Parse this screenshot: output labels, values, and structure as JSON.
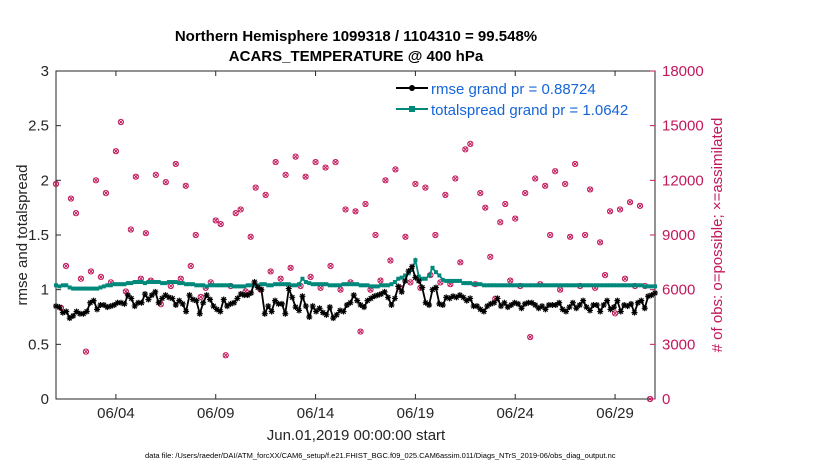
{
  "chart_data": {
    "type": "line",
    "title": "Northern Hemisphere 1099318 / 1104310 = 99.548%",
    "subtitle": "ACARS_TEMPERATURE @ 400 hPa",
    "xlabel": "Jun.01,2019 00:00:00 start",
    "ylabel": "rmse and totalspread",
    "y2label": "# of obs: o=possible; ×=assimilated",
    "footnote": "data file: /Users/raeder/DAI/ATM_forcXX/CAM6_setup/f.e21.FHIST_BGC.f09_025.CAM6assim.011/Diags_NTrS_2019-06/obs_diag_output.nc",
    "xlim": [
      0,
      30
    ],
    "ylim": [
      0,
      3
    ],
    "y2lim": [
      0,
      18000
    ],
    "x_tick_labels": [
      {
        "label": "06/04",
        "day": 3
      },
      {
        "label": "06/09",
        "day": 8
      },
      {
        "label": "06/14",
        "day": 13
      },
      {
        "label": "06/19",
        "day": 18
      },
      {
        "label": "06/24",
        "day": 23
      },
      {
        "label": "06/29",
        "day": 28
      }
    ],
    "y_ticks": [
      "0",
      "0.5",
      "1",
      "1.5",
      "2",
      "2.5",
      "3"
    ],
    "y2_ticks": [
      "0",
      "3000",
      "6000",
      "9000",
      "12000",
      "15000",
      "18000"
    ],
    "colors": {
      "rmse": "#000000",
      "spread": "#00897b",
      "obs": "#c2185b",
      "legend_text": "#1565d8"
    },
    "series": [
      {
        "name": "rmse grand pr = 0.88724",
        "values": [
          0.85,
          0.84,
          0.79,
          0.8,
          0.74,
          0.76,
          0.8,
          0.78,
          0.78,
          0.8,
          0.88,
          0.9,
          0.82,
          0.86,
          0.86,
          0.84,
          0.85,
          0.86,
          0.88,
          0.88,
          0.87,
          0.95,
          0.92,
          0.85,
          0.88,
          0.88,
          0.96,
          0.91,
          0.95,
          0.98,
          0.88,
          0.92,
          0.95,
          0.93,
          0.92,
          0.86,
          0.9,
          0.87,
          0.8,
          0.95,
          0.91,
          0.9,
          0.78,
          0.88,
          0.95,
          0.91,
          0.85,
          0.82,
          0.8,
          0.91,
          0.85,
          0.87,
          0.88,
          0.92,
          0.96,
          0.95,
          0.95,
          0.97,
          1.07,
          1.02,
          1.0,
          0.78,
          0.85,
          0.8,
          0.9,
          0.87,
          0.87,
          0.78,
          1.01,
          0.93,
          0.84,
          0.81,
          0.94,
          0.85,
          0.75,
          0.85,
          0.8,
          0.83,
          0.79,
          0.77,
          0.84,
          0.74,
          0.77,
          0.81,
          0.8,
          0.86,
          0.88,
          0.95,
          0.9,
          0.86,
          0.84,
          0.9,
          0.92,
          0.94,
          0.95,
          0.96,
          0.98,
          0.93,
          0.86,
          0.92,
          1.03,
          0.98,
          1.08,
          1.17,
          1.21,
          1.11,
          1.08,
          1.02,
          0.88,
          0.86,
          1.0,
          1.02,
          0.87,
          0.86,
          0.93,
          0.92,
          0.94,
          0.93,
          0.95,
          0.93,
          0.9,
          0.92,
          0.85,
          0.85,
          0.82,
          0.8,
          0.85,
          0.87,
          0.88,
          0.92,
          0.85,
          0.88,
          0.84,
          0.86,
          0.88,
          0.87,
          0.83,
          0.87,
          0.88,
          0.88,
          0.86,
          0.83,
          0.85,
          0.82,
          0.86,
          0.86,
          0.86,
          0.88,
          0.82,
          0.8,
          0.84,
          0.88,
          0.83,
          0.86,
          0.9,
          0.84,
          0.81,
          0.86,
          0.86,
          0.8,
          0.86,
          0.9,
          0.82,
          0.84,
          0.9,
          0.8,
          0.86,
          0.85,
          0.87,
          0.79,
          0.88,
          0.9,
          0.83,
          0.94,
          0.95,
          0.97
        ]
      },
      {
        "name": "totalspread grand pr = 1.0642",
        "values": [
          1.04,
          1.03,
          1.04,
          1.04,
          1.02,
          1.01,
          1.01,
          1.01,
          1.01,
          1.01,
          1.01,
          1.01,
          1.01,
          1.02,
          1.03,
          1.04,
          1.04,
          1.05,
          1.05,
          1.05,
          1.05,
          1.06,
          1.06,
          1.07,
          1.07,
          1.07,
          1.06,
          1.07,
          1.07,
          1.07,
          1.07,
          1.06,
          1.06,
          1.07,
          1.07,
          1.07,
          1.06,
          1.06,
          1.05,
          1.05,
          1.05,
          1.04,
          1.04,
          1.04,
          1.03,
          1.04,
          1.04,
          1.04,
          1.04,
          1.04,
          1.04,
          1.04,
          1.03,
          1.03,
          1.03,
          1.03,
          1.04,
          1.04,
          1.04,
          1.04,
          1.05,
          1.05,
          1.04,
          1.04,
          1.05,
          1.05,
          1.05,
          1.05,
          1.05,
          1.04,
          1.04,
          1.05,
          1.1,
          1.07,
          1.06,
          1.05,
          1.05,
          1.05,
          1.05,
          1.05,
          1.04,
          1.04,
          1.04,
          1.04,
          1.05,
          1.05,
          1.05,
          1.05,
          1.05,
          1.04,
          1.04,
          1.04,
          1.03,
          1.03,
          1.03,
          1.04,
          1.04,
          1.04,
          1.05,
          1.07,
          1.1,
          1.11,
          1.13,
          1.15,
          1.18,
          1.27,
          1.12,
          1.1,
          1.1,
          1.13,
          1.2,
          1.16,
          1.13,
          1.09,
          1.08,
          1.08,
          1.08,
          1.08,
          1.08,
          1.06,
          1.06,
          1.06,
          1.05,
          1.05,
          1.05,
          1.04,
          1.04,
          1.04,
          1.04,
          1.04,
          1.04,
          1.04,
          1.04,
          1.04,
          1.04,
          1.04,
          1.04,
          1.04,
          1.04,
          1.04,
          1.04,
          1.04,
          1.04,
          1.04,
          1.04,
          1.04,
          1.04,
          1.04,
          1.04,
          1.04,
          1.04,
          1.04,
          1.04,
          1.04,
          1.04,
          1.04,
          1.04,
          1.04,
          1.04,
          1.04,
          1.04,
          1.04,
          1.04,
          1.04,
          1.04,
          1.04,
          1.04,
          1.04,
          1.04,
          1.04,
          1.04,
          1.04,
          1.03,
          1.03,
          1.03,
          1.03
        ]
      },
      {
        "name": "obs",
        "points": [
          [
            0.0,
            11800
          ],
          [
            0.25,
            5000
          ],
          [
            0.5,
            7300
          ],
          [
            0.75,
            11000
          ],
          [
            1.0,
            10200
          ],
          [
            1.25,
            6600
          ],
          [
            1.5,
            2600
          ],
          [
            1.75,
            7000
          ],
          [
            2.0,
            12000
          ],
          [
            2.25,
            6700
          ],
          [
            2.5,
            11300
          ],
          [
            2.75,
            6400
          ],
          [
            3.0,
            13600
          ],
          [
            3.25,
            15200
          ],
          [
            3.5,
            5900
          ],
          [
            3.75,
            9300
          ],
          [
            4.0,
            12200
          ],
          [
            4.25,
            6600
          ],
          [
            4.5,
            9100
          ],
          [
            4.75,
            6500
          ],
          [
            5.0,
            12300
          ],
          [
            5.25,
            5200
          ],
          [
            5.5,
            11900
          ],
          [
            5.75,
            6200
          ],
          [
            6.0,
            12900
          ],
          [
            6.25,
            6600
          ],
          [
            6.5,
            11700
          ],
          [
            6.75,
            7300
          ],
          [
            7.0,
            9000
          ],
          [
            7.25,
            5600
          ],
          [
            7.5,
            6100
          ],
          [
            7.75,
            6400
          ],
          [
            8.0,
            9800
          ],
          [
            8.25,
            9600
          ],
          [
            8.5,
            2400
          ],
          [
            8.75,
            6200
          ],
          [
            9.0,
            10200
          ],
          [
            9.25,
            10400
          ],
          [
            9.5,
            5900
          ],
          [
            9.75,
            8900
          ],
          [
            10.0,
            11600
          ],
          [
            10.25,
            6000
          ],
          [
            10.5,
            11200
          ],
          [
            10.75,
            7000
          ],
          [
            11.0,
            13000
          ],
          [
            11.25,
            6600
          ],
          [
            11.5,
            12300
          ],
          [
            11.75,
            7200
          ],
          [
            12.0,
            13300
          ],
          [
            12.25,
            6200
          ],
          [
            12.5,
            12200
          ],
          [
            12.75,
            6700
          ],
          [
            13.0,
            13000
          ],
          [
            13.25,
            6100
          ],
          [
            13.5,
            12700
          ],
          [
            13.75,
            7300
          ],
          [
            14.0,
            13000
          ],
          [
            14.25,
            6000
          ],
          [
            14.5,
            10400
          ],
          [
            14.75,
            6400
          ],
          [
            15.0,
            10300
          ],
          [
            15.25,
            3700
          ],
          [
            15.5,
            10700
          ],
          [
            15.75,
            6000
          ],
          [
            16.0,
            9000
          ],
          [
            16.25,
            6500
          ],
          [
            16.5,
            12000
          ],
          [
            16.75,
            7600
          ],
          [
            17.0,
            12600
          ],
          [
            17.25,
            6100
          ],
          [
            17.5,
            8900
          ],
          [
            17.75,
            6400
          ],
          [
            18.0,
            11800
          ],
          [
            18.25,
            6100
          ],
          [
            18.5,
            11600
          ],
          [
            18.75,
            6800
          ],
          [
            19.0,
            9000
          ],
          [
            19.25,
            6400
          ],
          [
            19.5,
            11200
          ],
          [
            19.75,
            6300
          ],
          [
            20.0,
            12100
          ],
          [
            20.25,
            7500
          ],
          [
            20.5,
            13700
          ],
          [
            20.75,
            14000
          ],
          [
            21.0,
            6300
          ],
          [
            21.25,
            11300
          ],
          [
            21.5,
            10500
          ],
          [
            21.75,
            7800
          ],
          [
            22.0,
            5500
          ],
          [
            22.25,
            9700
          ],
          [
            22.5,
            10700
          ],
          [
            22.75,
            6500
          ],
          [
            23.0,
            9900
          ],
          [
            23.25,
            6200
          ],
          [
            23.5,
            11300
          ],
          [
            23.75,
            3400
          ],
          [
            24.0,
            12100
          ],
          [
            24.25,
            6300
          ],
          [
            24.5,
            11700
          ],
          [
            24.75,
            9000
          ],
          [
            25.0,
            12500
          ],
          [
            25.25,
            6000
          ],
          [
            25.5,
            11800
          ],
          [
            25.75,
            8900
          ],
          [
            26.0,
            12900
          ],
          [
            26.25,
            6200
          ],
          [
            26.5,
            9000
          ],
          [
            26.75,
            11500
          ],
          [
            27.0,
            6100
          ],
          [
            27.25,
            8600
          ],
          [
            27.5,
            6800
          ],
          [
            27.75,
            10300
          ],
          [
            28.0,
            4700
          ],
          [
            28.25,
            10400
          ],
          [
            28.5,
            6600
          ],
          [
            28.75,
            10800
          ],
          [
            29.0,
            6200
          ],
          [
            29.25,
            10600
          ],
          [
            29.5,
            6200
          ],
          [
            29.75,
            0
          ]
        ]
      }
    ]
  }
}
